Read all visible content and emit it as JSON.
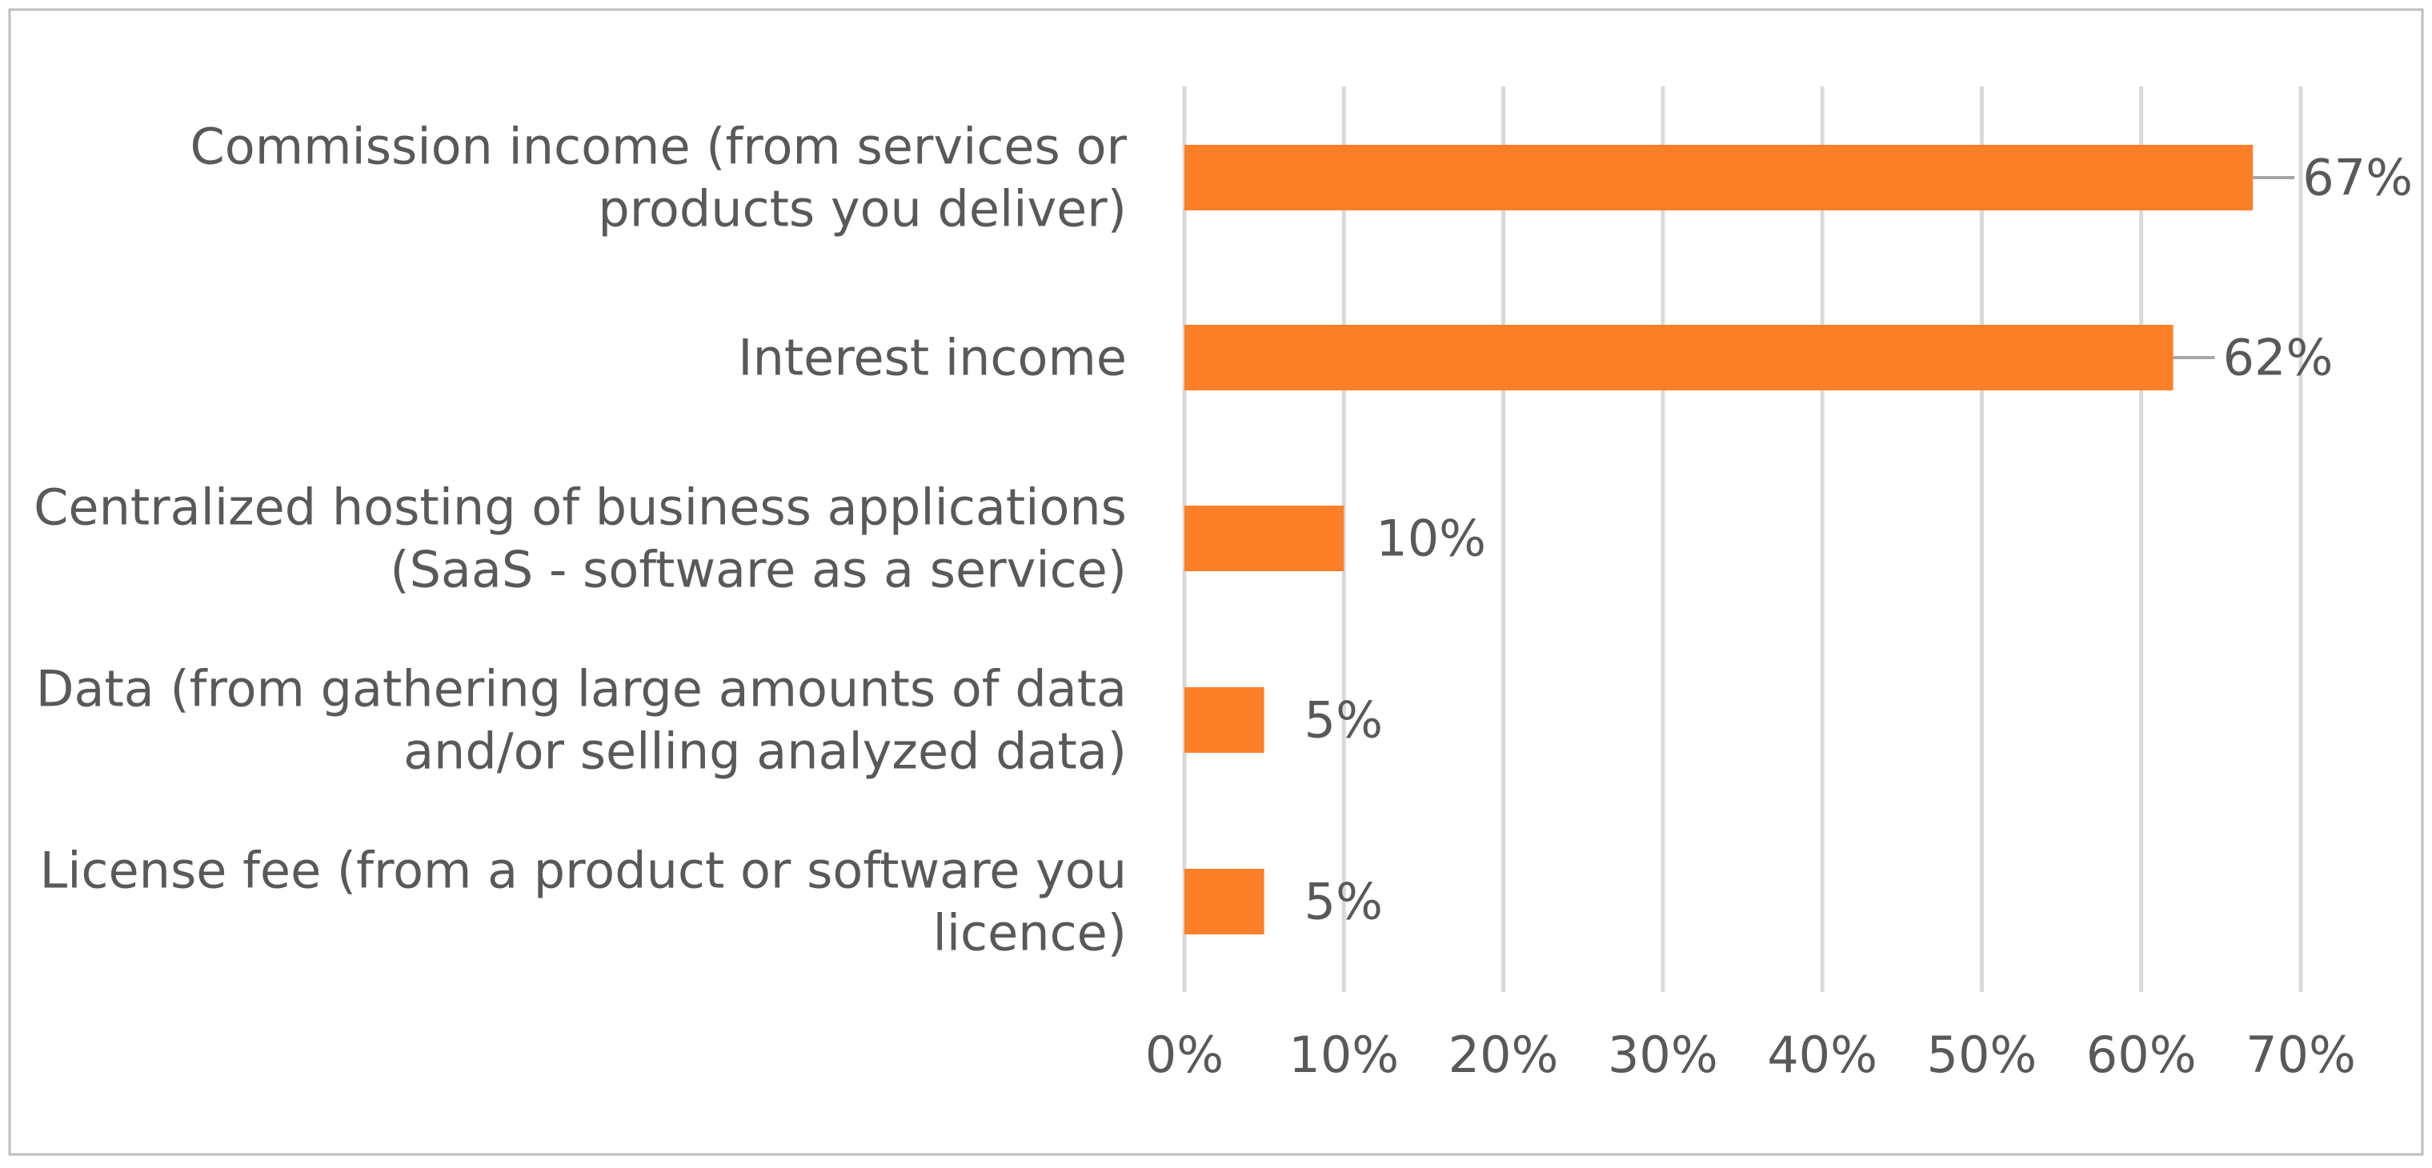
{
  "chart_data": {
    "type": "bar",
    "orientation": "horizontal",
    "title": "",
    "xlabel": "",
    "ylabel": "",
    "categories": [
      [
        "Commission income (from services or",
        "products you deliver)"
      ],
      [
        "Interest income"
      ],
      [
        "Centralized hosting of business applications",
        "(SaaS - software as a service)"
      ],
      [
        "Data (from gathering large amounts of data",
        "and/or selling analyzed data)"
      ],
      [
        "License fee (from a product or software you",
        "licence)"
      ]
    ],
    "values": [
      67,
      62,
      10,
      5,
      5
    ],
    "data_labels": [
      "67%",
      "62%",
      "10%",
      "5%",
      "5%"
    ],
    "xlim": [
      0,
      70
    ],
    "x_ticks": [
      0,
      10,
      20,
      30,
      40,
      50,
      60,
      70
    ],
    "x_tick_labels": [
      "0%",
      "10%",
      "20%",
      "30%",
      "40%",
      "50%",
      "60%",
      "70%"
    ],
    "grid": "vertical",
    "legend": "none",
    "colors": {
      "bar": "#FD7F27",
      "grid": "#D9D9D9",
      "text": "#595959",
      "leader": "#A6A6A6",
      "border": "#BFBFBF"
    }
  }
}
